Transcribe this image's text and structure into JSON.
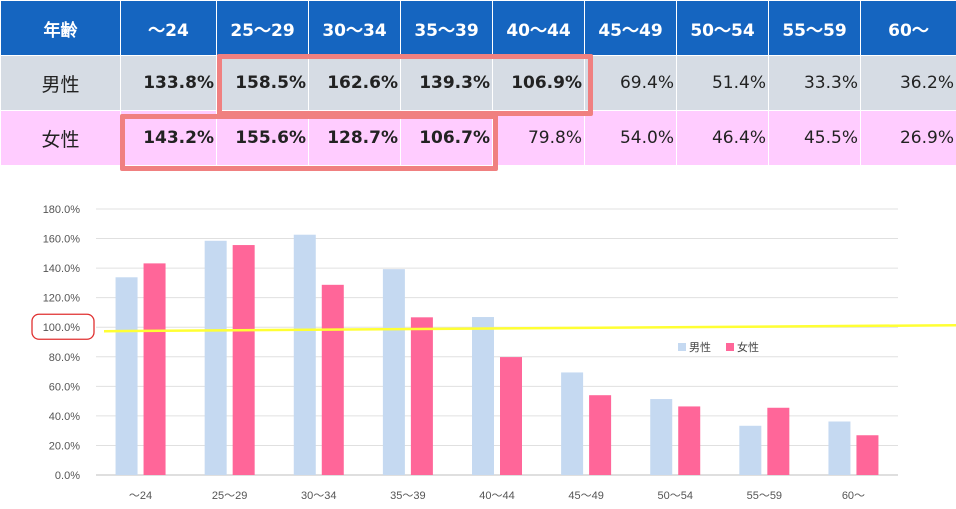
{
  "table": {
    "header_label": "年齢",
    "age_groups": [
      "～24",
      "25～29",
      "30～34",
      "35～39",
      "40～44",
      "45～49",
      "50～54",
      "55～59",
      "60～"
    ],
    "rows": [
      {
        "label": "男性",
        "values": [
          "133.8%",
          "158.5%",
          "162.6%",
          "139.3%",
          "106.9%",
          "69.4%",
          "51.4%",
          "33.3%",
          "36.2%"
        ],
        "bold": [
          true,
          true,
          true,
          true,
          true,
          false,
          false,
          false,
          false
        ]
      },
      {
        "label": "女性",
        "values": [
          "143.2%",
          "155.6%",
          "128.7%",
          "106.7%",
          "79.8%",
          "54.0%",
          "46.4%",
          "45.5%",
          "26.9%"
        ],
        "bold": [
          true,
          true,
          true,
          true,
          false,
          false,
          false,
          false,
          false
        ]
      }
    ]
  },
  "chart_data": {
    "type": "bar",
    "categories": [
      "～24",
      "25～29",
      "30～34",
      "35～39",
      "40～44",
      "45～49",
      "50～54",
      "55～59",
      "60～"
    ],
    "series": [
      {
        "name": "男性",
        "values": [
          133.8,
          158.5,
          162.6,
          139.3,
          106.9,
          69.4,
          51.4,
          33.3,
          36.2
        ],
        "color": "#c5d9f1"
      },
      {
        "name": "女性",
        "values": [
          143.2,
          155.6,
          128.7,
          106.7,
          79.8,
          54.0,
          46.4,
          45.5,
          26.9
        ],
        "color": "#ff6699"
      }
    ],
    "y_ticks": [
      "0.0%",
      "20.0%",
      "40.0%",
      "60.0%",
      "80.0%",
      "100.0%",
      "120.0%",
      "140.0%",
      "160.0%",
      "180.0%"
    ],
    "ylim": [
      0,
      180
    ],
    "grid": true,
    "legend_position": "right-middle",
    "reference_line": {
      "value": 100,
      "color": "#ffff33"
    },
    "highlighted_tick": "100.0%"
  }
}
